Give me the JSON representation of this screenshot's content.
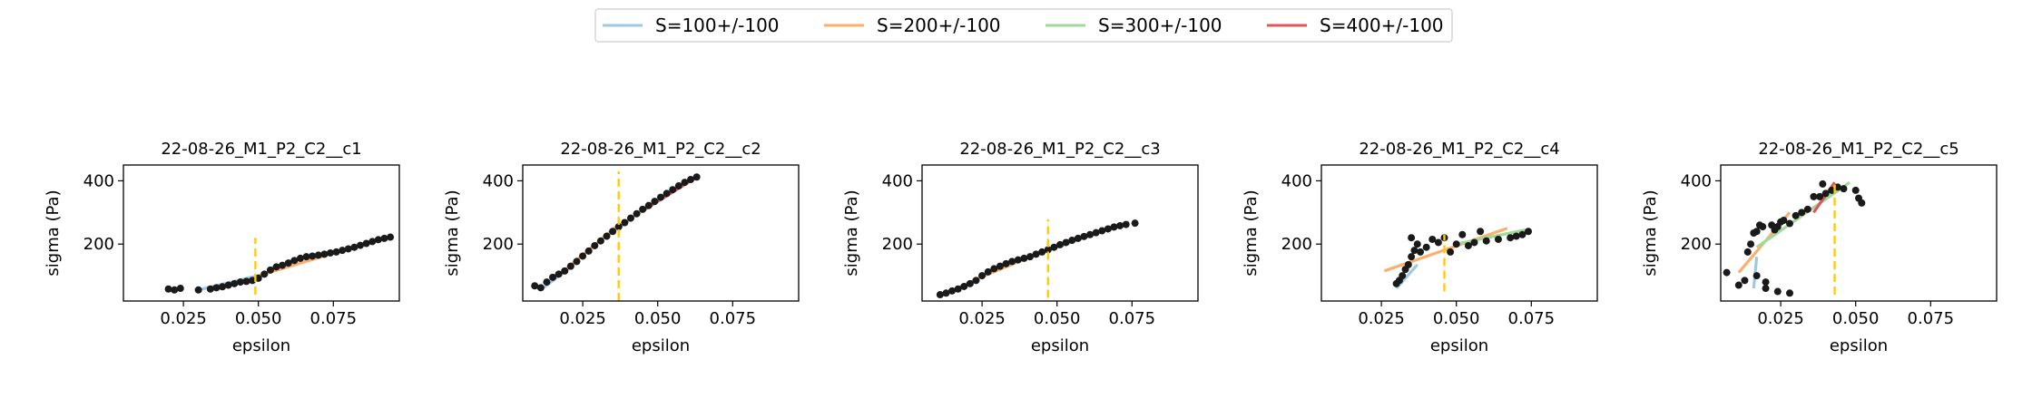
{
  "legend": {
    "placement": "top-center",
    "entries": [
      {
        "label": "S=100+/-100",
        "color": "#9ecae1"
      },
      {
        "label": "S=200+/-100",
        "color": "#fdae6b"
      },
      {
        "label": "S=300+/-100",
        "color": "#a1d99b"
      },
      {
        "label": "S=400+/-100",
        "color": "#e15759"
      }
    ]
  },
  "colors": {
    "points": "#1a1a1a",
    "marker_line": "#ffcc00"
  },
  "chart_data": [
    {
      "type": "scatter",
      "title": "22-08-26_M1_P2_C2__c1",
      "xlabel": "epsilon",
      "ylabel": "sigma (Pa)",
      "xlim": [
        0.005,
        0.097
      ],
      "ylim": [
        20,
        450
      ],
      "xticks": [
        0.025,
        0.05,
        0.075
      ],
      "xtick_labels": [
        "0.025",
        "0.050",
        "0.075"
      ],
      "yticks": [
        200,
        400
      ],
      "ytick_labels": [
        "200",
        "400"
      ],
      "grid": false,
      "marker_x": 0.049,
      "marker_y": [
        40,
        220
      ],
      "points": [
        [
          0.02,
          58
        ],
        [
          0.022,
          55
        ],
        [
          0.024,
          60
        ],
        [
          0.03,
          55
        ],
        [
          0.034,
          58
        ],
        [
          0.036,
          62
        ],
        [
          0.038,
          65
        ],
        [
          0.04,
          70
        ],
        [
          0.042,
          75
        ],
        [
          0.044,
          80
        ],
        [
          0.046,
          82
        ],
        [
          0.048,
          85
        ],
        [
          0.05,
          92
        ],
        [
          0.052,
          105
        ],
        [
          0.054,
          118
        ],
        [
          0.056,
          128
        ],
        [
          0.058,
          133
        ],
        [
          0.06,
          140
        ],
        [
          0.062,
          148
        ],
        [
          0.064,
          155
        ],
        [
          0.066,
          160
        ],
        [
          0.068,
          162
        ],
        [
          0.07,
          165
        ],
        [
          0.072,
          168
        ],
        [
          0.074,
          172
        ],
        [
          0.076,
          175
        ],
        [
          0.078,
          180
        ],
        [
          0.08,
          185
        ],
        [
          0.082,
          190
        ],
        [
          0.084,
          196
        ],
        [
          0.086,
          202
        ],
        [
          0.088,
          208
        ],
        [
          0.09,
          214
        ],
        [
          0.092,
          218
        ],
        [
          0.094,
          222
        ]
      ],
      "fits": [
        {
          "series": 0,
          "x": [
            0.03,
            0.052
          ],
          "y": [
            55,
            105
          ]
        },
        {
          "series": 1,
          "x": [
            0.05,
            0.094
          ],
          "y": [
            100,
            225
          ]
        }
      ]
    },
    {
      "type": "scatter",
      "title": "22-08-26_M1_P2_C2__c2",
      "xlabel": "epsilon",
      "ylabel": "sigma (Pa)",
      "xlim": [
        0.005,
        0.097
      ],
      "ylim": [
        20,
        450
      ],
      "xticks": [
        0.025,
        0.05,
        0.075
      ],
      "xtick_labels": [
        "0.025",
        "0.050",
        "0.075"
      ],
      "yticks": [
        200,
        400
      ],
      "ytick_labels": [
        "200",
        "400"
      ],
      "grid": false,
      "marker_x": 0.037,
      "marker_y": [
        20,
        430
      ],
      "points": [
        [
          0.009,
          68
        ],
        [
          0.011,
          62
        ],
        [
          0.013,
          80
        ],
        [
          0.015,
          95
        ],
        [
          0.017,
          105
        ],
        [
          0.019,
          115
        ],
        [
          0.021,
          130
        ],
        [
          0.023,
          145
        ],
        [
          0.025,
          162
        ],
        [
          0.027,
          178
        ],
        [
          0.029,
          195
        ],
        [
          0.031,
          210
        ],
        [
          0.033,
          225
        ],
        [
          0.035,
          240
        ],
        [
          0.037,
          255
        ],
        [
          0.039,
          268
        ],
        [
          0.041,
          282
        ],
        [
          0.043,
          296
        ],
        [
          0.045,
          310
        ],
        [
          0.047,
          322
        ],
        [
          0.049,
          335
        ],
        [
          0.051,
          348
        ],
        [
          0.053,
          360
        ],
        [
          0.055,
          372
        ],
        [
          0.057,
          384
        ],
        [
          0.059,
          395
        ],
        [
          0.061,
          404
        ],
        [
          0.063,
          412
        ]
      ],
      "fits": [
        {
          "series": 0,
          "x": [
            0.011,
            0.022
          ],
          "y": [
            55,
            135
          ]
        },
        {
          "series": 1,
          "x": [
            0.018,
            0.037
          ],
          "y": [
            110,
            262
          ]
        },
        {
          "series": 2,
          "x": [
            0.033,
            0.05
          ],
          "y": [
            225,
            340
          ]
        },
        {
          "series": 3,
          "x": [
            0.045,
            0.063
          ],
          "y": [
            305,
            412
          ]
        }
      ]
    },
    {
      "type": "scatter",
      "title": "22-08-26_M1_P2_C2__c3",
      "xlabel": "epsilon",
      "ylabel": "sigma (Pa)",
      "xlim": [
        0.005,
        0.097
      ],
      "ylim": [
        20,
        450
      ],
      "xticks": [
        0.025,
        0.05,
        0.075
      ],
      "xtick_labels": [
        "0.025",
        "0.050",
        "0.075"
      ],
      "yticks": [
        200,
        400
      ],
      "ytick_labels": [
        "200",
        "400"
      ],
      "grid": false,
      "marker_x": 0.047,
      "marker_y": [
        30,
        278
      ],
      "points": [
        [
          0.011,
          40
        ],
        [
          0.013,
          45
        ],
        [
          0.015,
          52
        ],
        [
          0.017,
          58
        ],
        [
          0.019,
          66
        ],
        [
          0.021,
          75
        ],
        [
          0.023,
          85
        ],
        [
          0.025,
          100
        ],
        [
          0.027,
          112
        ],
        [
          0.029,
          122
        ],
        [
          0.031,
          130
        ],
        [
          0.033,
          138
        ],
        [
          0.035,
          145
        ],
        [
          0.037,
          150
        ],
        [
          0.039,
          155
        ],
        [
          0.041,
          160
        ],
        [
          0.043,
          168
        ],
        [
          0.045,
          175
        ],
        [
          0.047,
          182
        ],
        [
          0.049,
          190
        ],
        [
          0.051,
          198
        ],
        [
          0.053,
          205
        ],
        [
          0.055,
          212
        ],
        [
          0.057,
          218
        ],
        [
          0.059,
          224
        ],
        [
          0.061,
          230
        ],
        [
          0.063,
          236
        ],
        [
          0.065,
          242
        ],
        [
          0.067,
          248
        ],
        [
          0.069,
          254
        ],
        [
          0.071,
          258
        ],
        [
          0.073,
          262
        ],
        [
          0.076,
          266
        ]
      ],
      "fits": [
        {
          "series": 0,
          "x": [
            0.011,
            0.028
          ],
          "y": [
            35,
            110
          ]
        },
        {
          "series": 1,
          "x": [
            0.022,
            0.057
          ],
          "y": [
            85,
            222
          ]
        },
        {
          "series": 2,
          "x": [
            0.047,
            0.074
          ],
          "y": [
            180,
            270
          ]
        }
      ]
    },
    {
      "type": "scatter",
      "title": "22-08-26_M1_P2_C2__c4",
      "xlabel": "epsilon",
      "ylabel": "sigma (Pa)",
      "xlim": [
        0.005,
        0.097
      ],
      "ylim": [
        20,
        450
      ],
      "xticks": [
        0.025,
        0.05,
        0.075
      ],
      "xtick_labels": [
        "0.025",
        "0.050",
        "0.075"
      ],
      "yticks": [
        200,
        400
      ],
      "ytick_labels": [
        "200",
        "400"
      ],
      "grid": false,
      "marker_x": 0.046,
      "marker_y": [
        50,
        230
      ],
      "points": [
        [
          0.03,
          75
        ],
        [
          0.031,
          85
        ],
        [
          0.032,
          100
        ],
        [
          0.033,
          120
        ],
        [
          0.034,
          135
        ],
        [
          0.035,
          160
        ],
        [
          0.036,
          180
        ],
        [
          0.035,
          220
        ],
        [
          0.037,
          200
        ],
        [
          0.038,
          175
        ],
        [
          0.04,
          190
        ],
        [
          0.042,
          215
        ],
        [
          0.044,
          205
        ],
        [
          0.046,
          220
        ],
        [
          0.048,
          175
        ],
        [
          0.05,
          200
        ],
        [
          0.052,
          230
        ],
        [
          0.054,
          195
        ],
        [
          0.056,
          205
        ],
        [
          0.058,
          240
        ],
        [
          0.06,
          210
        ],
        [
          0.064,
          215
        ],
        [
          0.068,
          220
        ],
        [
          0.07,
          225
        ],
        [
          0.072,
          230
        ],
        [
          0.074,
          240
        ]
      ],
      "fits": [
        {
          "series": 0,
          "x": [
            0.03,
            0.037
          ],
          "y": [
            60,
            135
          ]
        },
        {
          "series": 1,
          "x": [
            0.026,
            0.067
          ],
          "y": [
            115,
            250
          ]
        },
        {
          "series": 2,
          "x": [
            0.05,
            0.073
          ],
          "y": [
            200,
            245
          ]
        }
      ]
    },
    {
      "type": "scatter",
      "title": "22-08-26_M1_P2_C2__c5",
      "xlabel": "epsilon",
      "ylabel": "sigma (Pa)",
      "xlim": [
        0.005,
        0.097
      ],
      "ylim": [
        20,
        450
      ],
      "xticks": [
        0.025,
        0.05,
        0.075
      ],
      "xtick_labels": [
        "0.025",
        "0.050",
        "0.075"
      ],
      "yticks": [
        200,
        400
      ],
      "ytick_labels": [
        "200",
        "400"
      ],
      "grid": false,
      "marker_x": 0.043,
      "marker_y": [
        40,
        400
      ],
      "points": [
        [
          0.007,
          110
        ],
        [
          0.011,
          70
        ],
        [
          0.013,
          85
        ],
        [
          0.014,
          175
        ],
        [
          0.015,
          200
        ],
        [
          0.016,
          235
        ],
        [
          0.017,
          240
        ],
        [
          0.018,
          260
        ],
        [
          0.019,
          255
        ],
        [
          0.017,
          100
        ],
        [
          0.02,
          80
        ],
        [
          0.02,
          60
        ],
        [
          0.022,
          260
        ],
        [
          0.023,
          245
        ],
        [
          0.024,
          255
        ],
        [
          0.025,
          270
        ],
        [
          0.026,
          275
        ],
        [
          0.028,
          265
        ],
        [
          0.03,
          290
        ],
        [
          0.032,
          300
        ],
        [
          0.034,
          310
        ],
        [
          0.036,
          350
        ],
        [
          0.038,
          350
        ],
        [
          0.039,
          390
        ],
        [
          0.04,
          360
        ],
        [
          0.042,
          370
        ],
        [
          0.044,
          380
        ],
        [
          0.046,
          375
        ],
        [
          0.05,
          370
        ],
        [
          0.051,
          345
        ],
        [
          0.052,
          330
        ],
        [
          0.024,
          50
        ],
        [
          0.028,
          45
        ]
      ],
      "fits": [
        {
          "series": 0,
          "x": [
            0.016,
            0.017
          ],
          "y": [
            60,
            160
          ]
        },
        {
          "series": 1,
          "x": [
            0.011,
            0.028
          ],
          "y": [
            110,
            300
          ]
        },
        {
          "series": 2,
          "x": [
            0.017,
            0.048
          ],
          "y": [
            190,
            395
          ]
        },
        {
          "series": 3,
          "x": [
            0.036,
            0.043
          ],
          "y": [
            300,
            395
          ]
        }
      ]
    }
  ]
}
